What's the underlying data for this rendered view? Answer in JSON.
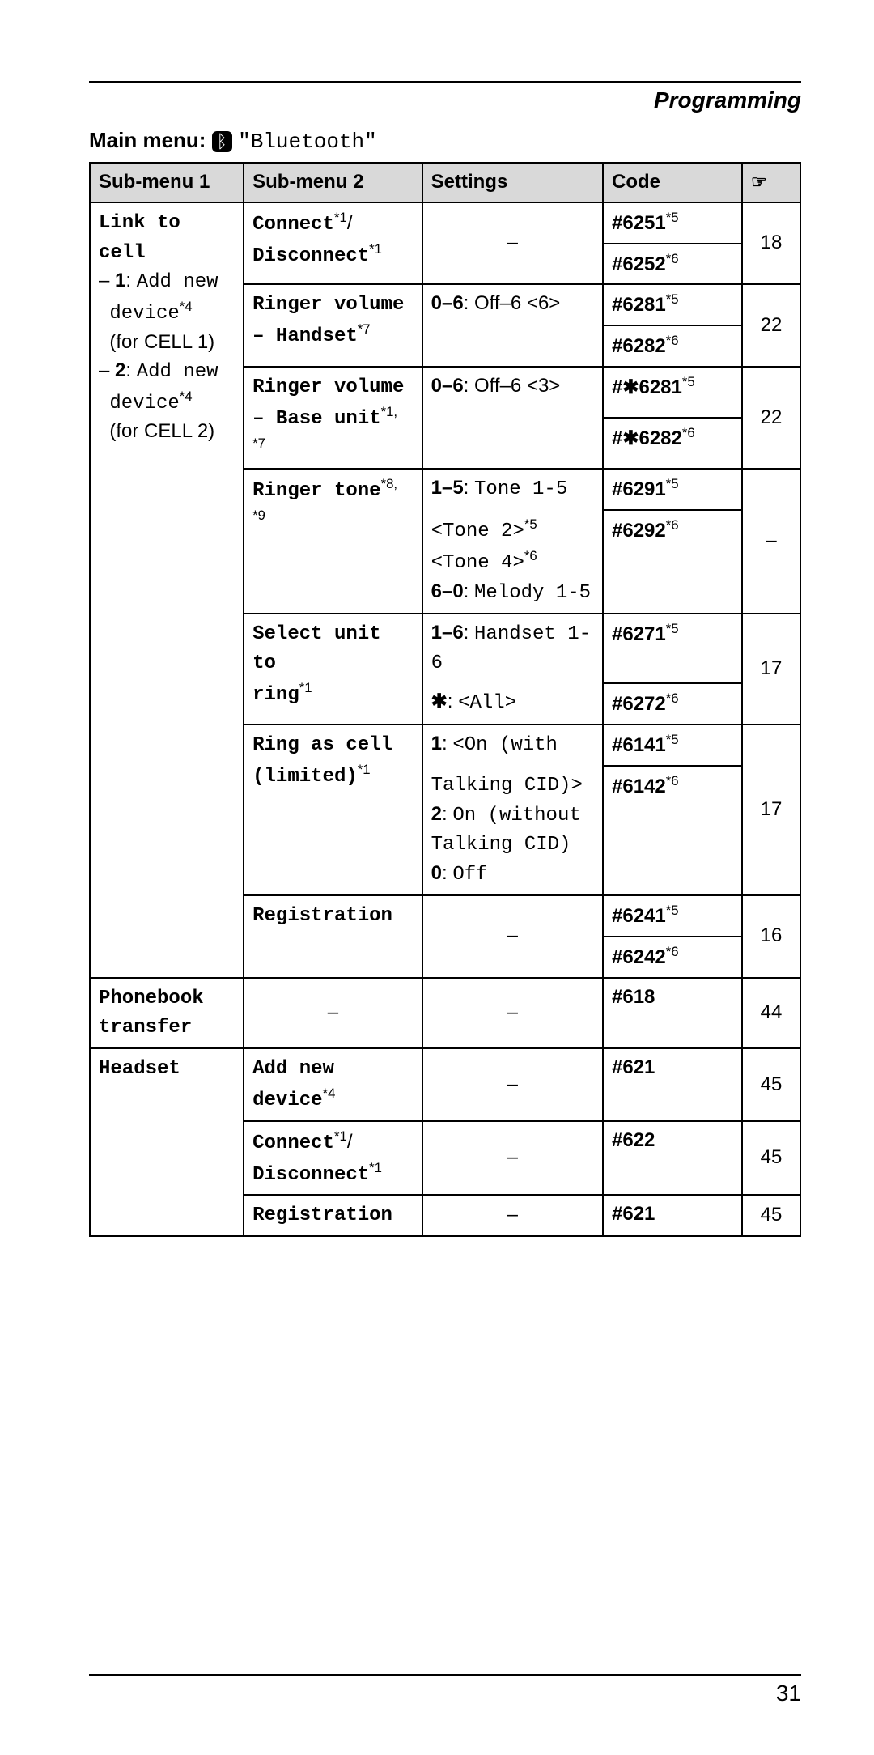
{
  "header": {
    "section_title": "Programming"
  },
  "main_menu": {
    "label_prefix": "Main menu: ",
    "icon": "ᛒ",
    "label_text": "\"Bluetooth\""
  },
  "table": {
    "headers": {
      "sub1": "Sub-menu 1",
      "sub2": "Sub-menu 2",
      "settings": "Settings",
      "code": "Code",
      "ref_icon": "☞"
    },
    "link_to_cell": {
      "title": "Link to cell",
      "line1a": "– ",
      "line1b": "1",
      "line1c": ": Add new",
      "line_device": "device",
      "sup4": "*4",
      "for_cell1": "(for CELL 1)",
      "line2a": "– ",
      "line2b": "2",
      "line2c": ": Add new",
      "for_cell2": "(for CELL 2)"
    },
    "rows": {
      "connect": {
        "text": "Connect",
        "sup": "*1",
        "slash": "/",
        "disconnect": "Disconnect",
        "sup2": "*1",
        "settings": "–",
        "code1": "#6251",
        "code1sup": "*5",
        "code2": "#6252",
        "code2sup": "*6",
        "page": "18"
      },
      "ringer_vol_handset": {
        "text": "Ringer volume",
        "line2a": "– Handset",
        "sup": "*7",
        "settings_b": "0–6",
        "settings_rest": ": Off–6 <6>",
        "code1": "#6281",
        "code1sup": "*5",
        "code2": "#6282",
        "code2sup": "*6",
        "page": "22"
      },
      "ringer_vol_base": {
        "text": "Ringer volume",
        "line2a": "– Base unit",
        "sup": "*1, *7",
        "settings_b": "0–6",
        "settings_rest": ": Off–6 <3>",
        "code1": "#",
        "code1star": "✱",
        "code1rest": "6281",
        "code1sup": "*5",
        "code2": "#",
        "code2star": "✱",
        "code2rest": "6282",
        "code2sup": "*6",
        "page": "22"
      },
      "ringer_tone": {
        "text": "Ringer tone",
        "sup": "*8, *9",
        "s1b": "1–5",
        "s1rest": ": Tone 1-5",
        "s2": "<Tone 2>",
        "s2sup": "*5",
        "s3": "<Tone 4>",
        "s3sup": "*6",
        "s4b": "6–0",
        "s4rest": ": Melody 1-5",
        "code1": "#6291",
        "code1sup": "*5",
        "code2": "#6292",
        "code2sup": "*6",
        "page": "–"
      },
      "select_unit": {
        "text1": "Select unit to",
        "text2": "ring",
        "sup": "*1",
        "s1b": "1–6",
        "s1rest": ": Handset 1-6",
        "s2star": "✱",
        "s2rest": ": <All>",
        "code1": "#6271",
        "code1sup": "*5",
        "code2": "#6272",
        "code2sup": "*6",
        "page": "17"
      },
      "ring_as_cell": {
        "text1": "Ring as cell",
        "text2": "(limited)",
        "sup": "*1",
        "s1b": "1",
        "s1rest": ": <On (with",
        "s2": "Talking CID)>",
        "s3b": "2",
        "s3rest": ": On (without",
        "s4": "Talking CID)",
        "s5b": "0",
        "s5rest": ": Off",
        "code1": "#6141",
        "code1sup": "*5",
        "code2": "#6142",
        "code2sup": "*6",
        "page": "17"
      },
      "registration1": {
        "text": "Registration",
        "settings": "–",
        "code1": "#6241",
        "code1sup": "*5",
        "code2": "#6242",
        "code2sup": "*6",
        "page": "16"
      },
      "phonebook": {
        "text1": "Phonebook",
        "text2": "transfer",
        "sub2": "–",
        "settings": "–",
        "code": "#618",
        "page": "44"
      },
      "headset": {
        "title": "Headset",
        "add_new": "Add new",
        "device": "device",
        "sup4": "*4",
        "settings1": "–",
        "code1": "#621",
        "page1": "45",
        "connect": "Connect",
        "csup": "*1",
        "slash": "/",
        "disconnect": "Disconnect",
        "dsup": "*1",
        "settings2": "–",
        "code2": "#622",
        "page2": "45",
        "reg": "Registration",
        "settings3": "–",
        "code3": "#621",
        "page3": "45"
      }
    }
  },
  "footer": {
    "page_number": "31"
  }
}
